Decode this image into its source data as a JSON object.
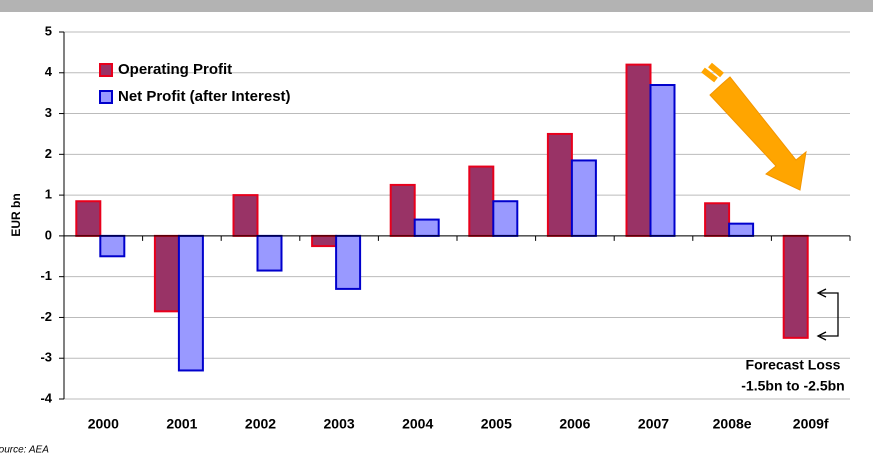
{
  "chart_data": {
    "type": "bar",
    "y_label": "EUR bn",
    "categories": [
      "2000",
      "2001",
      "2002",
      "2003",
      "2004",
      "2005",
      "2006",
      "2007",
      "2008e",
      "2009f"
    ],
    "series": [
      {
        "name": "Operating Profit",
        "color": "#993366",
        "edge": "#e8001c",
        "values": [
          0.85,
          -1.85,
          1.0,
          -0.25,
          1.25,
          1.7,
          2.5,
          4.2,
          0.8,
          -2.5
        ]
      },
      {
        "name": "Net Profit (after Interest)",
        "color": "#9999ff",
        "edge": "#0000cc",
        "values": [
          -0.5,
          -3.3,
          -0.85,
          -1.3,
          0.4,
          0.85,
          1.85,
          3.7,
          0.3,
          null
        ]
      }
    ],
    "ylim": [
      -4,
      5
    ],
    "yticks": [
      -4,
      -3,
      -2,
      -1,
      0,
      1,
      2,
      3,
      4,
      5
    ],
    "grid": true,
    "legend": "upper left",
    "annotation": [
      "Forecast Loss",
      "-1.5bn to -2.5bn"
    ],
    "source": "Source: AEA"
  }
}
